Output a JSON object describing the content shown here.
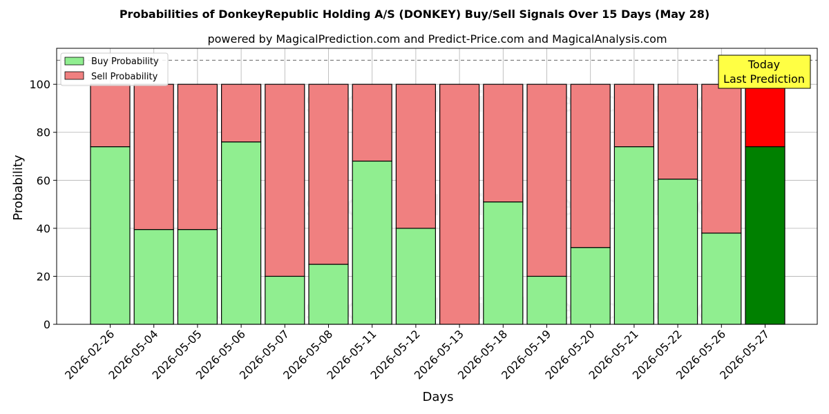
{
  "chart_data": {
    "type": "bar",
    "stacked": true,
    "title": "Probabilities of DonkeyRepublic Holding A/S (DONKEY) Buy/Sell Signals Over 15 Days (May 28)",
    "subtitle": "powered by MagicalPrediction.com and Predict-Price.com and MagicalAnalysis.com",
    "xlabel": "Days",
    "ylabel": "Probability",
    "ylim": [
      0,
      115
    ],
    "yticks": [
      0,
      20,
      40,
      60,
      80,
      100
    ],
    "grid": true,
    "legend_position": "top-left",
    "reference_line": 110,
    "categories": [
      "2026-02-26",
      "2026-05-04",
      "2026-05-05",
      "2026-05-06",
      "2026-05-07",
      "2026-05-08",
      "2026-05-11",
      "2026-05-12",
      "2026-05-13",
      "2026-05-18",
      "2026-05-19",
      "2026-05-20",
      "2026-05-21",
      "2026-05-22",
      "2026-05-26",
      "2026-05-27"
    ],
    "series": [
      {
        "name": "Buy Probability",
        "color": "#90ee90",
        "highlight_color": "#008000",
        "values": [
          74,
          39.5,
          39.5,
          76,
          20,
          25,
          68,
          40,
          0,
          51,
          20,
          32,
          74,
          60.5,
          38,
          74
        ]
      },
      {
        "name": "Sell Probability",
        "color": "#f08080",
        "highlight_color": "#ff0000",
        "values": [
          26,
          60.5,
          60.5,
          24,
          80,
          75,
          32,
          60,
          100,
          49,
          80,
          68,
          26,
          39.5,
          62,
          26
        ]
      }
    ],
    "highlight_index": 15,
    "annotation": {
      "lines": [
        "Today",
        "Last Prediction"
      ],
      "background": "#ffff44"
    },
    "watermarks": [
      "MagicalAnalysis.com",
      "MagicalPrediction.com"
    ]
  }
}
